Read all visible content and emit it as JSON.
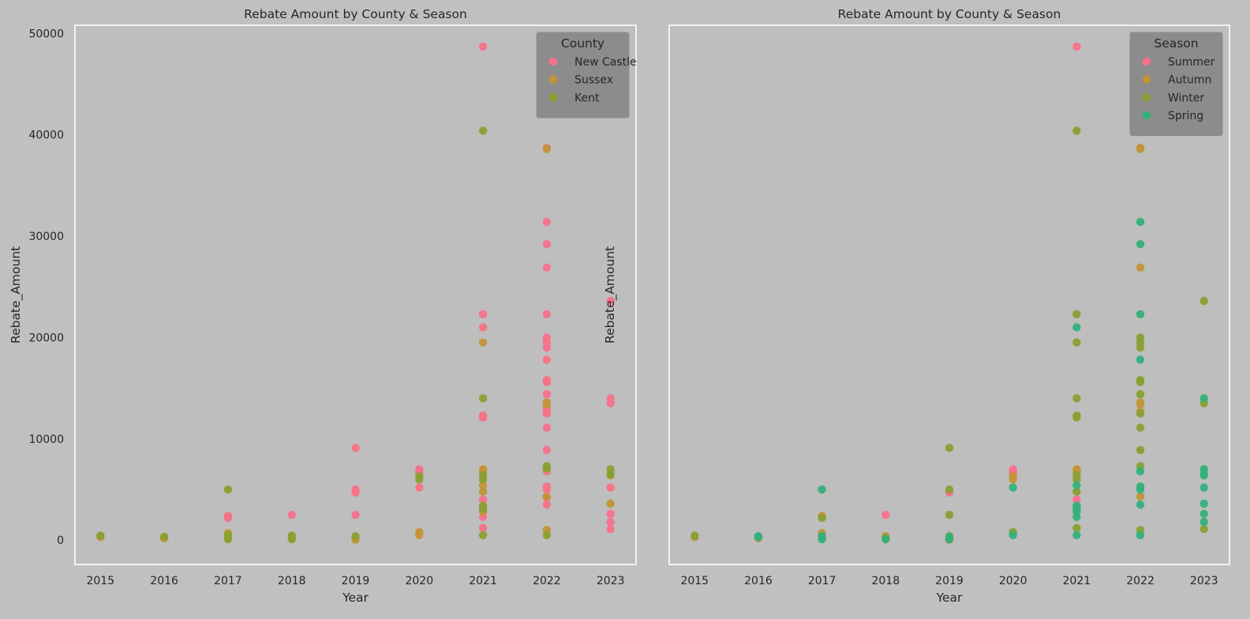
{
  "figure": {
    "background": "#c0c0c0",
    "plot_background": "#bebebe"
  },
  "chart_data": [
    {
      "type": "scatter",
      "title": "Rebate Amount by County & Season",
      "xlabel": "Year",
      "ylabel": "Rebate_Amount",
      "x_ticks": [
        "2015",
        "2016",
        "2017",
        "2018",
        "2019",
        "2020",
        "2021",
        "2022",
        "2023"
      ],
      "y_ticks": [
        "0",
        "10000",
        "20000",
        "30000",
        "40000",
        "50000"
      ],
      "ylim": [
        -2400,
        50800
      ],
      "grid": false,
      "legend": {
        "title": "County",
        "placement": "top-right"
      },
      "series": [
        {
          "name": "New Castle",
          "color": "#f77189",
          "points": [
            [
              2017,
              2400
            ],
            [
              2017,
              2200
            ],
            [
              2018,
              2500
            ],
            [
              2019,
              9100
            ],
            [
              2019,
              5000
            ],
            [
              2019,
              4700
            ],
            [
              2019,
              2500
            ],
            [
              2020,
              7000
            ],
            [
              2020,
              6700
            ],
            [
              2020,
              5200
            ],
            [
              2021,
              48700
            ],
            [
              2021,
              22300
            ],
            [
              2021,
              21000
            ],
            [
              2021,
              12300
            ],
            [
              2021,
              12100
            ],
            [
              2021,
              4000
            ],
            [
              2021,
              3400
            ],
            [
              2021,
              2300
            ],
            [
              2021,
              1200
            ],
            [
              2022,
              38700
            ],
            [
              2022,
              31400
            ],
            [
              2022,
              29200
            ],
            [
              2022,
              26900
            ],
            [
              2022,
              22300
            ],
            [
              2022,
              20000
            ],
            [
              2022,
              19500
            ],
            [
              2022,
              19000
            ],
            [
              2022,
              17800
            ],
            [
              2022,
              15800
            ],
            [
              2022,
              15600
            ],
            [
              2022,
              14400
            ],
            [
              2022,
              13100
            ],
            [
              2022,
              12700
            ],
            [
              2022,
              12500
            ],
            [
              2022,
              11100
            ],
            [
              2022,
              8900
            ],
            [
              2022,
              6800
            ],
            [
              2022,
              5300
            ],
            [
              2022,
              5000
            ],
            [
              2022,
              4200
            ],
            [
              2022,
              3500
            ],
            [
              2023,
              23600
            ],
            [
              2023,
              14000
            ],
            [
              2023,
              13500
            ],
            [
              2023,
              5200
            ],
            [
              2023,
              2600
            ],
            [
              2023,
              1800
            ],
            [
              2023,
              1100
            ]
          ]
        },
        {
          "name": "Sussex",
          "color": "#c39337",
          "points": [
            [
              2015,
              300
            ],
            [
              2016,
              200
            ],
            [
              2017,
              700
            ],
            [
              2017,
              300
            ],
            [
              2018,
              200
            ],
            [
              2019,
              200
            ],
            [
              2019,
              50
            ],
            [
              2020,
              800
            ],
            [
              2020,
              500
            ],
            [
              2021,
              19500
            ],
            [
              2021,
              7000
            ],
            [
              2021,
              6800
            ],
            [
              2021,
              5400
            ],
            [
              2021,
              4800
            ],
            [
              2021,
              2800
            ],
            [
              2022,
              38600
            ],
            [
              2022,
              13600
            ],
            [
              2022,
              13400
            ],
            [
              2022,
              4300
            ],
            [
              2022,
              1000
            ],
            [
              2023,
              6400
            ],
            [
              2023,
              3600
            ]
          ]
        },
        {
          "name": "Kent",
          "color": "#88a031",
          "points": [
            [
              2015,
              450
            ],
            [
              2016,
              350
            ],
            [
              2017,
              5000
            ],
            [
              2017,
              500
            ],
            [
              2017,
              100
            ],
            [
              2018,
              450
            ],
            [
              2018,
              100
            ],
            [
              2019,
              400
            ],
            [
              2020,
              6300
            ],
            [
              2020,
              6000
            ],
            [
              2021,
              40400
            ],
            [
              2021,
              14000
            ],
            [
              2021,
              6400
            ],
            [
              2021,
              6000
            ],
            [
              2021,
              3400
            ],
            [
              2021,
              3100
            ],
            [
              2021,
              500
            ],
            [
              2022,
              7300
            ],
            [
              2022,
              7100
            ],
            [
              2022,
              500
            ],
            [
              2023,
              7000
            ],
            [
              2023,
              6500
            ]
          ]
        }
      ]
    },
    {
      "type": "scatter",
      "title": "Rebate Amount by County & Season",
      "xlabel": "Year",
      "ylabel": "Rebate_Amount",
      "x_ticks": [
        "2015",
        "2016",
        "2017",
        "2018",
        "2019",
        "2020",
        "2021",
        "2022",
        "2023"
      ],
      "ylim": [
        -2400,
        50800
      ],
      "grid": false,
      "legend": {
        "title": "Season",
        "placement": "top-right"
      },
      "series": [
        {
          "name": "Summer",
          "color": "#f77189",
          "points": [
            [
              2017,
              500
            ],
            [
              2018,
              2500
            ],
            [
              2019,
              4700
            ],
            [
              2020,
              7000
            ],
            [
              2020,
              6700
            ],
            [
              2021,
              48700
            ],
            [
              2021,
              4000
            ]
          ]
        },
        {
          "name": "Autumn",
          "color": "#c39337",
          "points": [
            [
              2015,
              300
            ],
            [
              2016,
              200
            ],
            [
              2017,
              2400
            ],
            [
              2017,
              700
            ],
            [
              2017,
              300
            ],
            [
              2018,
              400
            ],
            [
              2019,
              50
            ],
            [
              2020,
              6300
            ],
            [
              2020,
              6000
            ],
            [
              2021,
              7000
            ],
            [
              2021,
              6800
            ],
            [
              2022,
              38700
            ],
            [
              2022,
              38600
            ],
            [
              2022,
              26900
            ],
            [
              2022,
              13600
            ],
            [
              2022,
              13400
            ],
            [
              2022,
              12700
            ],
            [
              2022,
              4300
            ]
          ]
        },
        {
          "name": "Winter",
          "color": "#88a031",
          "points": [
            [
              2015,
              450
            ],
            [
              2017,
              2200
            ],
            [
              2018,
              200
            ],
            [
              2019,
              9100
            ],
            [
              2019,
              5000
            ],
            [
              2019,
              2500
            ],
            [
              2019,
              400
            ],
            [
              2020,
              800
            ],
            [
              2021,
              40400
            ],
            [
              2021,
              22300
            ],
            [
              2021,
              19500
            ],
            [
              2021,
              14000
            ],
            [
              2021,
              12300
            ],
            [
              2021,
              12100
            ],
            [
              2021,
              6400
            ],
            [
              2021,
              6000
            ],
            [
              2021,
              4800
            ],
            [
              2021,
              1200
            ],
            [
              2022,
              20000
            ],
            [
              2022,
              19500
            ],
            [
              2022,
              19000
            ],
            [
              2022,
              15800
            ],
            [
              2022,
              15600
            ],
            [
              2022,
              14400
            ],
            [
              2022,
              12500
            ],
            [
              2022,
              11100
            ],
            [
              2022,
              8900
            ],
            [
              2022,
              7300
            ],
            [
              2022,
              1000
            ],
            [
              2023,
              23600
            ],
            [
              2023,
              13500
            ],
            [
              2023,
              1100
            ]
          ]
        },
        {
          "name": "Spring",
          "color": "#33b07a",
          "points": [
            [
              2016,
              400
            ],
            [
              2016,
              300
            ],
            [
              2017,
              5000
            ],
            [
              2017,
              400
            ],
            [
              2017,
              100
            ],
            [
              2018,
              100
            ],
            [
              2019,
              300
            ],
            [
              2019,
              100
            ],
            [
              2020,
              5200
            ],
            [
              2020,
              500
            ],
            [
              2021,
              21000
            ],
            [
              2021,
              5400
            ],
            [
              2021,
              3400
            ],
            [
              2021,
              3100
            ],
            [
              2021,
              2800
            ],
            [
              2021,
              2300
            ],
            [
              2021,
              500
            ],
            [
              2022,
              31400
            ],
            [
              2022,
              29200
            ],
            [
              2022,
              22300
            ],
            [
              2022,
              17800
            ],
            [
              2022,
              6800
            ],
            [
              2022,
              5300
            ],
            [
              2022,
              5000
            ],
            [
              2022,
              3500
            ],
            [
              2022,
              500
            ],
            [
              2023,
              14000
            ],
            [
              2023,
              7000
            ],
            [
              2023,
              6500
            ],
            [
              2023,
              6400
            ],
            [
              2023,
              5200
            ],
            [
              2023,
              3600
            ],
            [
              2023,
              2600
            ],
            [
              2023,
              1800
            ]
          ]
        }
      ]
    }
  ]
}
